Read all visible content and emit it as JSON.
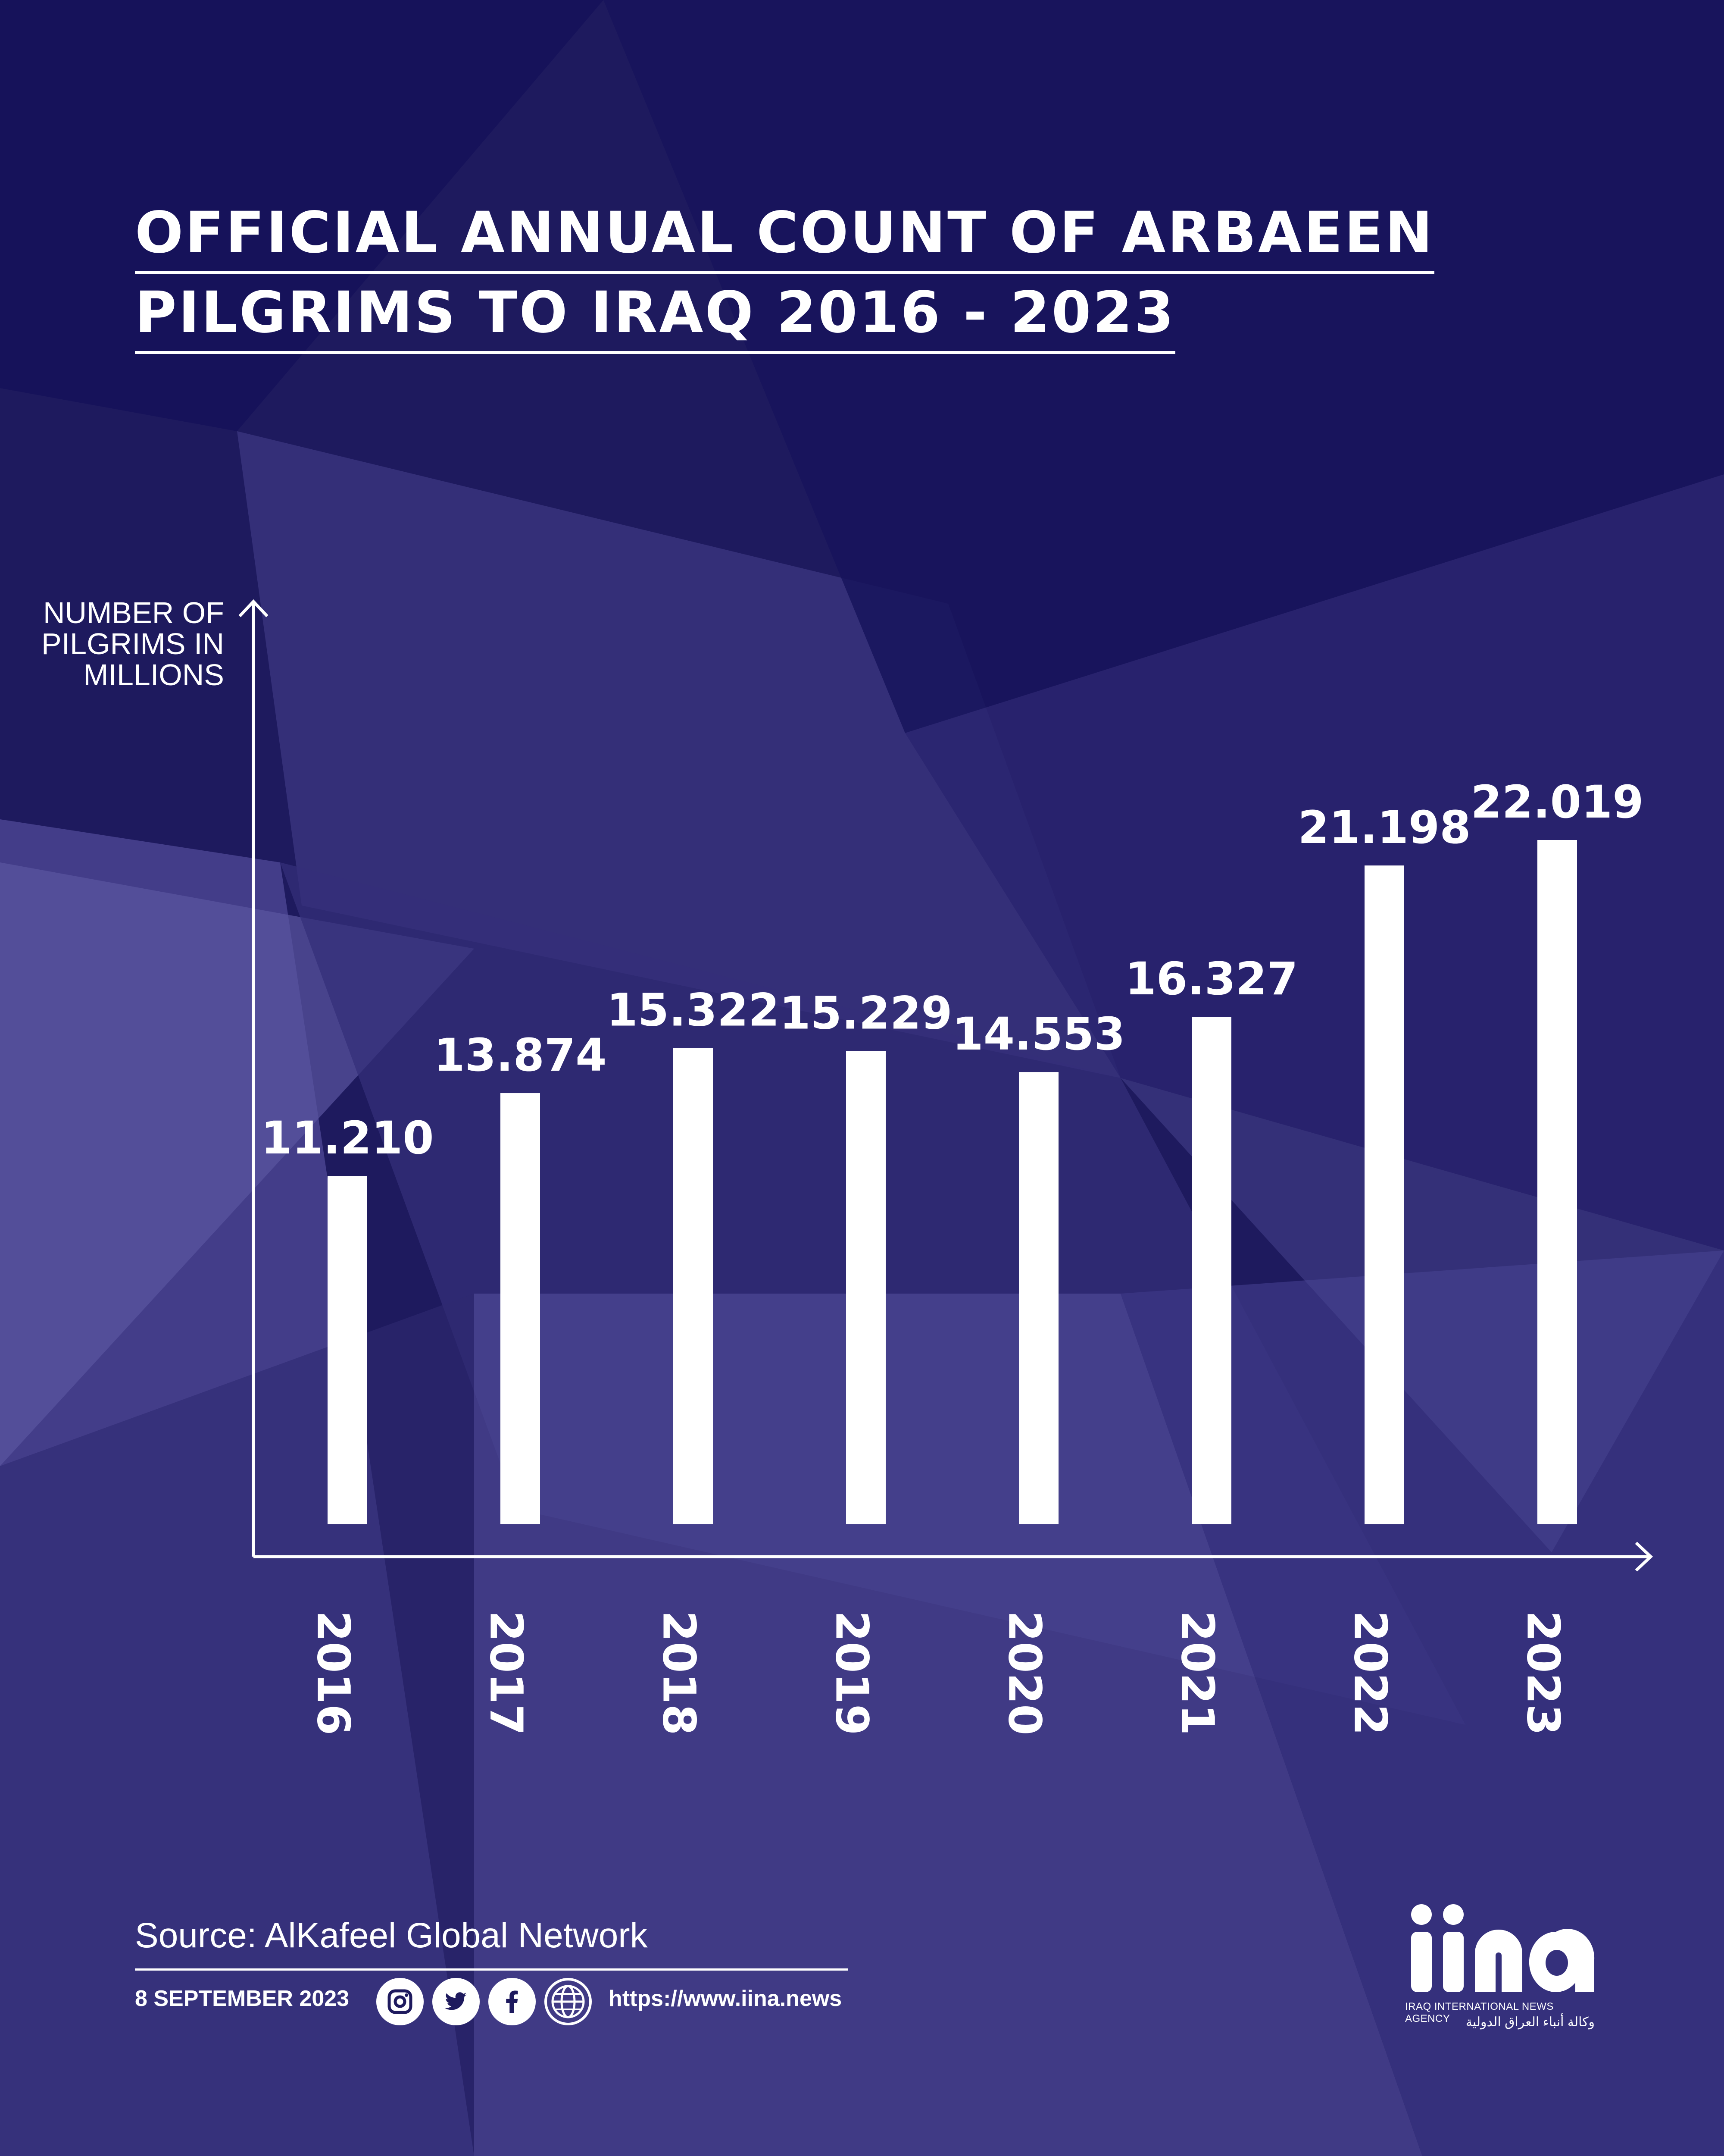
{
  "title_lines": [
    "OFFICIAL ANNUAL COUNT OF ARBAEEN",
    "PILGRIMS TO IRAQ 2016 - 2023"
  ],
  "colors": {
    "background": "#1e1a5e",
    "bar": "#ffffff",
    "text": "#ffffff"
  },
  "chart_data": {
    "type": "bar",
    "ylabel_lines": [
      "NUMBER OF",
      "PILGRIMS IN",
      "MILLIONS"
    ],
    "xlabel": "",
    "categories": [
      "2016",
      "2017",
      "2018",
      "2019",
      "2020",
      "2021",
      "2022",
      "2023"
    ],
    "values": [
      11.21,
      13.874,
      15.322,
      15.229,
      14.553,
      16.327,
      21.198,
      22.019
    ],
    "data_labels": [
      "11.210",
      "13.874",
      "15.322",
      "15.229",
      "14.553",
      "16.327",
      "21.198",
      "22.019"
    ],
    "ylim": [
      0,
      25
    ],
    "grid": false,
    "legend": "none",
    "tick_label_orientation": "rotated-90-clockwise"
  },
  "footer": {
    "source": "Source: AlKafeel Global Network",
    "date": "8 SEPTEMBER 2023",
    "url": "https://www.iina.news",
    "social_icons": [
      "instagram-icon",
      "twitter-icon",
      "facebook-icon",
      "globe-icon"
    ]
  },
  "logo": {
    "mark_text": "iina",
    "english": "IRAQ INTERNATIONAL NEWS AGENCY",
    "arabic": "وكالة أنباء العراق الدولية"
  }
}
